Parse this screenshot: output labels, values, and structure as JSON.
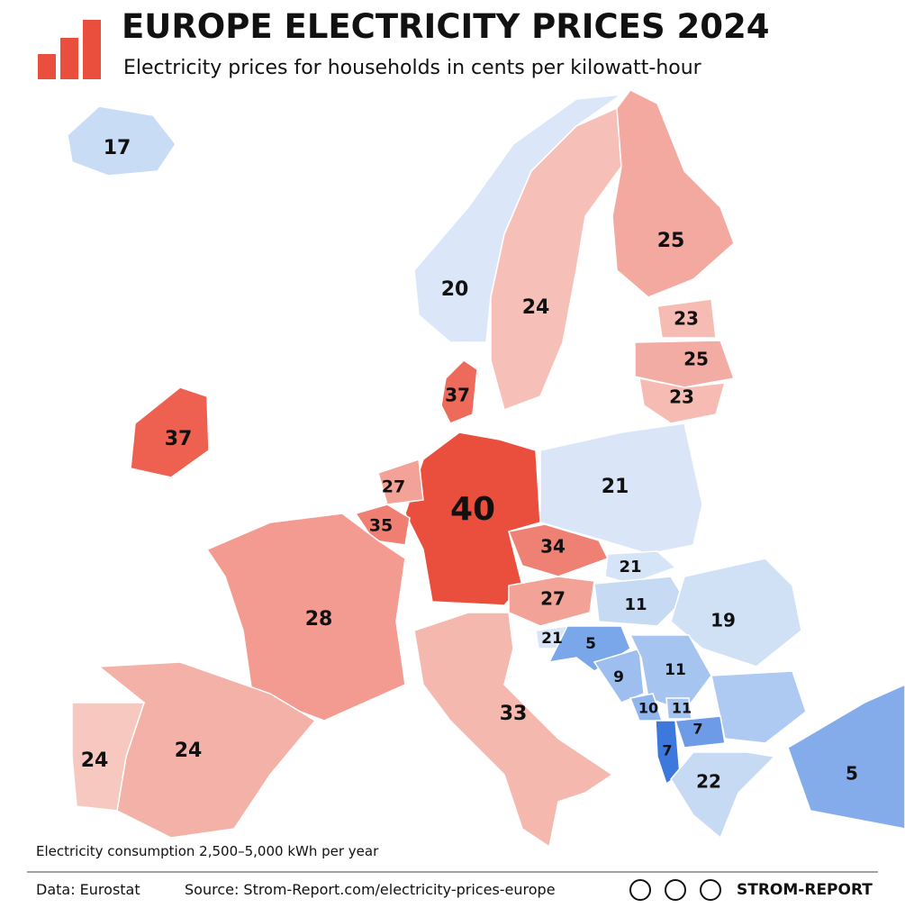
{
  "header": {
    "title": "EUROPE ELECTRICITY PRICES 2024",
    "subtitle": "Electricity prices for households in cents per kilowatt-hour"
  },
  "map": {
    "regions": [
      {
        "value": 17,
        "color": "#c9dcf5"
      },
      {
        "value": 20,
        "color": "#dbe7f8"
      },
      {
        "value": 24,
        "color": "#f6c0b8"
      },
      {
        "value": 25,
        "color": "#f3a9a0"
      },
      {
        "value": 23,
        "color": "#f6bcb3"
      },
      {
        "value": 25,
        "color": "#f3aca3"
      },
      {
        "value": 23,
        "color": "#f6bcb3"
      },
      {
        "value": 37,
        "color": "#ee6a5a"
      },
      {
        "value": 37,
        "color": "#ee6050"
      },
      {
        "value": 40,
        "color": "#ea4f3e"
      },
      {
        "value": 27,
        "color": "#f2a296"
      },
      {
        "value": 35,
        "color": "#ef7f72"
      },
      {
        "value": 21,
        "color": "#dae6f8"
      },
      {
        "value": 34,
        "color": "#ef8174"
      },
      {
        "value": 21,
        "color": "#d6e4f7"
      },
      {
        "value": 27,
        "color": "#f2a296"
      },
      {
        "value": 11,
        "color": "#c6daf4"
      },
      {
        "value": 19,
        "color": "#d0e1f6"
      },
      {
        "value": 28,
        "color": "#f39b90"
      },
      {
        "value": 21,
        "color": "#dae6f8"
      },
      {
        "value": 5,
        "color": "#7aa7ea"
      },
      {
        "value": 9,
        "color": "#9dbeef"
      },
      {
        "value": 11,
        "color": "#a6c4f0"
      },
      {
        "value": 10,
        "color": "#91b5ed"
      },
      {
        "value": 11,
        "color": "#a6c4f0"
      },
      {
        "value": 7,
        "color": "#6d9be6"
      },
      {
        "value": 7,
        "color": "#3d78dc"
      },
      {
        "value": 22,
        "color": "#c6daf4"
      },
      {
        "value": 5,
        "color": "#84acea"
      },
      {
        "value": 33,
        "color": "#f5b8ae"
      },
      {
        "value": 24,
        "color": "#f4b1a8"
      },
      {
        "value": 24,
        "color": "#f7c8c0"
      }
    ]
  },
  "footer": {
    "note": "Electricity consumption 2,500–5,000 kWh per year",
    "data": "Data: Eurostat",
    "source": "Source: Strom-Report.com/electricity-prices-europe",
    "brand": "STROM-REPORT"
  }
}
